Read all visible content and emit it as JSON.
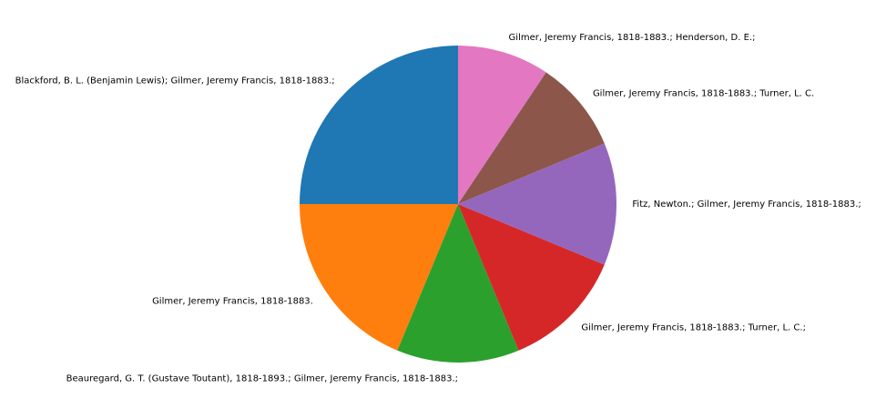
{
  "chart_data": {
    "type": "pie",
    "title": "",
    "start_angle_deg": 90,
    "direction": "counterclockwise",
    "slices": [
      {
        "label": "Blackford, B. L. (Benjamin Lewis); Gilmer, Jeremy Francis, 1818-1883.;",
        "value": 4,
        "color": "#1f77b4"
      },
      {
        "label": "Gilmer, Jeremy Francis, 1818-1883.",
        "value": 3,
        "color": "#ff7f0e"
      },
      {
        "label": "Beauregard, G. T. (Gustave Toutant), 1818-1893.; Gilmer, Jeremy Francis, 1818-1883.;",
        "value": 2,
        "color": "#2ca02c"
      },
      {
        "label": "Gilmer, Jeremy Francis, 1818-1883.; Turner, L. C.;",
        "value": 2,
        "color": "#d62728"
      },
      {
        "label": "Fitz, Newton.; Gilmer, Jeremy Francis, 1818-1883.;",
        "value": 2,
        "color": "#9467bd"
      },
      {
        "label": "Gilmer, Jeremy Francis, 1818-1883.; Turner, L. C.",
        "value": 1.5,
        "color": "#8c564b"
      },
      {
        "label": "Gilmer, Jeremy Francis, 1818-1883.; Henderson, D. E.;",
        "value": 1.5,
        "color": "#e377c2"
      }
    ]
  }
}
